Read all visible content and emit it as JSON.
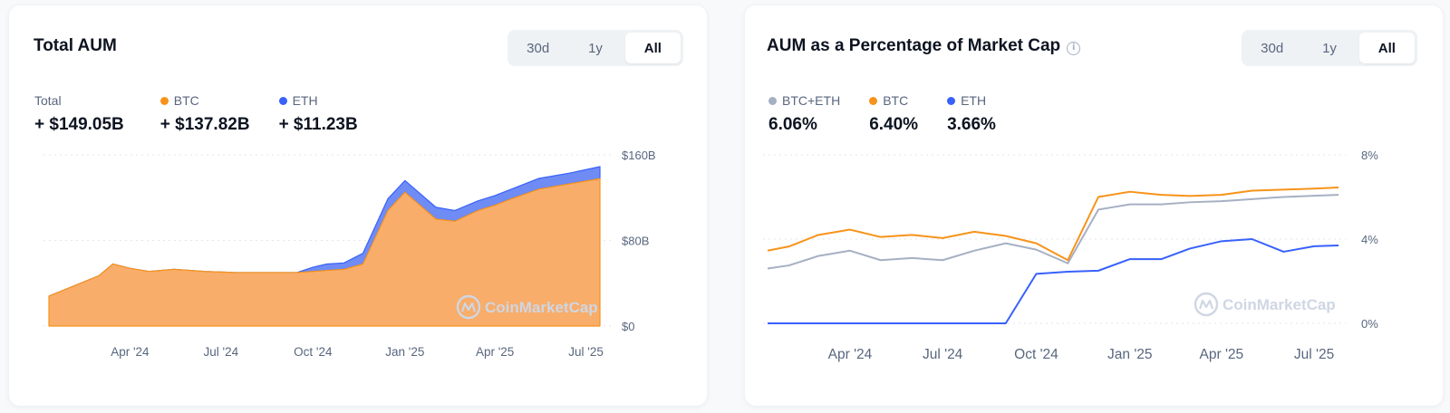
{
  "cards": [
    {
      "title": "Total AUM",
      "ranges": [
        "30d",
        "1y",
        "All"
      ],
      "active_range": "All",
      "legend": [
        {
          "label": "Total",
          "value": "+ $149.05B",
          "color": null
        },
        {
          "label": "BTC",
          "value": "+ $137.82B",
          "color": "#f7931a"
        },
        {
          "label": "ETH",
          "value": "+ $11.23B",
          "color": "#3861fb"
        }
      ]
    },
    {
      "title": "AUM as a Percentage of Market Cap",
      "ranges": [
        "30d",
        "1y",
        "All"
      ],
      "active_range": "All",
      "legend": [
        {
          "label": "BTC+ETH",
          "value": "6.06%",
          "color": "#a6b0c3"
        },
        {
          "label": "BTC",
          "value": "6.40%",
          "color": "#f7931a"
        },
        {
          "label": "ETH",
          "value": "3.66%",
          "color": "#3861fb"
        }
      ]
    }
  ],
  "watermark": "CoinMarketCap",
  "chart_data": [
    {
      "type": "area",
      "stacked": true,
      "title": "Total AUM",
      "x": [
        "2024-01-11",
        "2024-03-01",
        "2024-03-15",
        "2024-04-01",
        "2024-04-20",
        "2024-05-15",
        "2024-06-15",
        "2024-07-15",
        "2024-08-15",
        "2024-09-01",
        "2024-09-15",
        "2024-10-01",
        "2024-10-15",
        "2024-11-01",
        "2024-11-20",
        "2024-12-15",
        "2025-01-01",
        "2025-02-01",
        "2025-02-20",
        "2025-03-15",
        "2025-04-01",
        "2025-04-15",
        "2025-05-15",
        "2025-06-15",
        "2025-07-15"
      ],
      "series": [
        {
          "name": "BTC",
          "color": "#f7931a",
          "values": [
            28,
            47,
            58,
            54,
            51,
            53,
            51,
            50,
            50,
            50,
            50,
            51,
            52,
            53,
            58,
            108,
            125,
            100,
            98,
            108,
            113,
            118,
            128,
            133,
            137.8
          ]
        },
        {
          "name": "ETH",
          "color": "#3861fb",
          "values": [
            0,
            0,
            0,
            0,
            0,
            0,
            0,
            0,
            0,
            0,
            0,
            4,
            6,
            6,
            10,
            11,
            11,
            11,
            10,
            9,
            9,
            9,
            10,
            10,
            11.2
          ]
        }
      ],
      "x_ticks": [
        "Apr '24",
        "Jul '24",
        "Oct '24",
        "Jan '25",
        "Apr '25",
        "Jul '25"
      ],
      "x_tick_dates": [
        "2024-04-01",
        "2024-07-01",
        "2024-10-01",
        "2025-01-01",
        "2025-04-01",
        "2025-07-01"
      ],
      "y_ticks": [
        "$0",
        "$80B",
        "$160B"
      ],
      "y_tick_values": [
        0,
        80,
        160
      ],
      "ylim": [
        0,
        160
      ],
      "grid": true
    },
    {
      "type": "line",
      "title": "AUM as a Percentage of Market Cap",
      "x": [
        "2024-01-11",
        "2024-02-01",
        "2024-03-01",
        "2024-04-01",
        "2024-05-01",
        "2024-06-01",
        "2024-07-01",
        "2024-08-01",
        "2024-09-01",
        "2024-10-01",
        "2024-11-01",
        "2024-12-01",
        "2025-01-01",
        "2025-02-01",
        "2025-03-01",
        "2025-04-01",
        "2025-05-01",
        "2025-06-01",
        "2025-07-01",
        "2025-07-25"
      ],
      "series": [
        {
          "name": "BTC+ETH",
          "color": "#a6b0c3",
          "values": [
            2.6,
            2.75,
            3.2,
            3.45,
            3.0,
            3.1,
            3.0,
            3.45,
            3.8,
            3.5,
            2.85,
            5.4,
            5.65,
            5.65,
            5.75,
            5.8,
            5.9,
            6.0,
            6.06,
            6.1
          ]
        },
        {
          "name": "BTC",
          "color": "#f7931a",
          "values": [
            3.45,
            3.65,
            4.2,
            4.45,
            4.1,
            4.2,
            4.05,
            4.35,
            4.15,
            3.8,
            3.0,
            6.0,
            6.25,
            6.1,
            6.05,
            6.1,
            6.3,
            6.35,
            6.4,
            6.45
          ]
        },
        {
          "name": "ETH",
          "color": "#3861fb",
          "values": [
            0,
            0,
            0,
            0,
            0,
            0,
            0,
            0,
            0,
            2.35,
            2.45,
            2.5,
            3.05,
            3.05,
            3.55,
            3.9,
            4.0,
            3.4,
            3.66,
            3.7
          ]
        }
      ],
      "x_ticks": [
        "Apr '24",
        "Jul '24",
        "Oct '24",
        "Jan '25",
        "Apr '25",
        "Jul '25"
      ],
      "x_tick_dates": [
        "2024-04-01",
        "2024-07-01",
        "2024-10-01",
        "2025-01-01",
        "2025-04-01",
        "2025-07-01"
      ],
      "y_ticks": [
        "0%",
        "4%",
        "8%"
      ],
      "y_tick_values": [
        0,
        4,
        8
      ],
      "ylim": [
        0,
        8
      ],
      "grid": true
    }
  ]
}
